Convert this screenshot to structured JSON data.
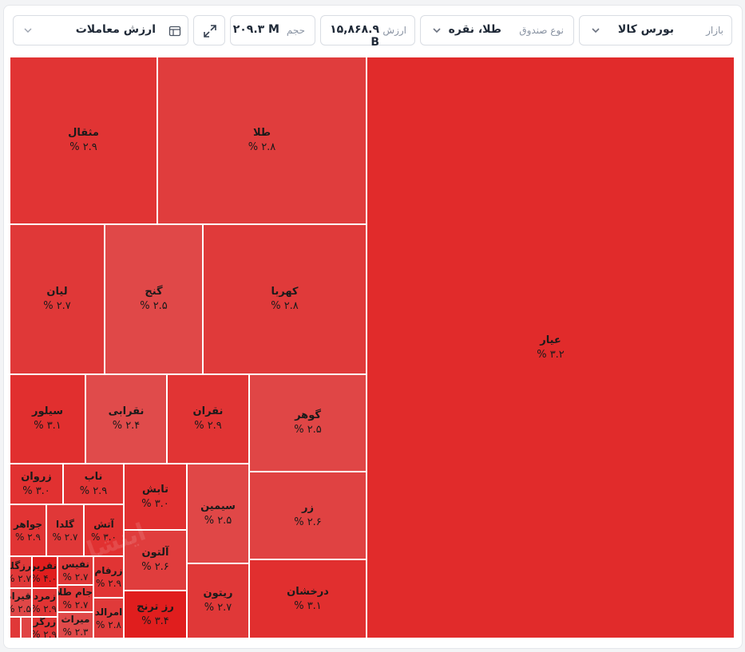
{
  "toolbar": {
    "market": {
      "label": "بازار",
      "value": "بورس کالا"
    },
    "fund_type": {
      "label": "نوع صندوق",
      "value": "طلا، نقره"
    },
    "total_value": {
      "label": "ارزش",
      "value": "۱۵,۸۶۸.۹ B"
    },
    "volume": {
      "label": "حجم",
      "value": "۲۰۹.۳ M"
    },
    "metric": {
      "value": "ارزش معاملات"
    }
  },
  "colors": {
    "strong": "#e12b2b",
    "mid": "#e03a3a",
    "light": "#e04a4a"
  },
  "watermark": "اینشا",
  "tiles": [
    {
      "name": "عیار",
      "pct": "۳.۲ %"
    },
    {
      "name": "مثقال",
      "pct": "۲.۹ %"
    },
    {
      "name": "طلا",
      "pct": "۲.۸ %"
    },
    {
      "name": "لیان",
      "pct": "۲.۷ %"
    },
    {
      "name": "گنج",
      "pct": "۲.۵ %"
    },
    {
      "name": "کهربا",
      "pct": "۲.۸ %"
    },
    {
      "name": "سیلور",
      "pct": "۳.۱ %"
    },
    {
      "name": "نقرابی",
      "pct": "۲.۴ %"
    },
    {
      "name": "نقران",
      "pct": "۲.۹ %"
    },
    {
      "name": "گوهر",
      "pct": "۲.۵ %"
    },
    {
      "name": "زروان",
      "pct": "۳.۰ %"
    },
    {
      "name": "ناب",
      "pct": "۲.۹ %"
    },
    {
      "name": "تابش",
      "pct": "۳.۰ %"
    },
    {
      "name": "سیمین",
      "pct": "۲.۵ %"
    },
    {
      "name": "زر",
      "pct": "۲.۶ %"
    },
    {
      "name": "جواهر",
      "pct": "۲.۹ %"
    },
    {
      "name": "گلدا",
      "pct": "۲.۷ %"
    },
    {
      "name": "آتش",
      "pct": "۳.۰ %"
    },
    {
      "name": "آلتون",
      "pct": "۲.۶ %"
    },
    {
      "name": "رزگلد",
      "pct": "۲.۷ %"
    },
    {
      "name": "نقرین",
      "pct": "۴.۰ %"
    },
    {
      "name": "نفیس",
      "pct": "۲.۷ %"
    },
    {
      "name": "زرفام",
      "pct": "۲.۹ %"
    },
    {
      "name": "ریتون",
      "pct": "۲.۷ %"
    },
    {
      "name": "درخشان",
      "pct": "۳.۱ %"
    },
    {
      "name": "قیراط",
      "pct": "۲.۵ %"
    },
    {
      "name": "زمرد",
      "pct": "۲.۹ %"
    },
    {
      "name": "جام طلا",
      "pct": "۲.۷ %"
    },
    {
      "name": "امرالد",
      "pct": "۲.۸ %"
    },
    {
      "name": "رز ترنج",
      "pct": "۳.۴ %"
    },
    {
      "name": "زرگر",
      "pct": "۲.۹ %"
    },
    {
      "name": "میراث",
      "pct": "۲.۳ %"
    },
    {
      "name": "",
      "pct": ""
    },
    {
      "name": "",
      "pct": ""
    }
  ]
}
